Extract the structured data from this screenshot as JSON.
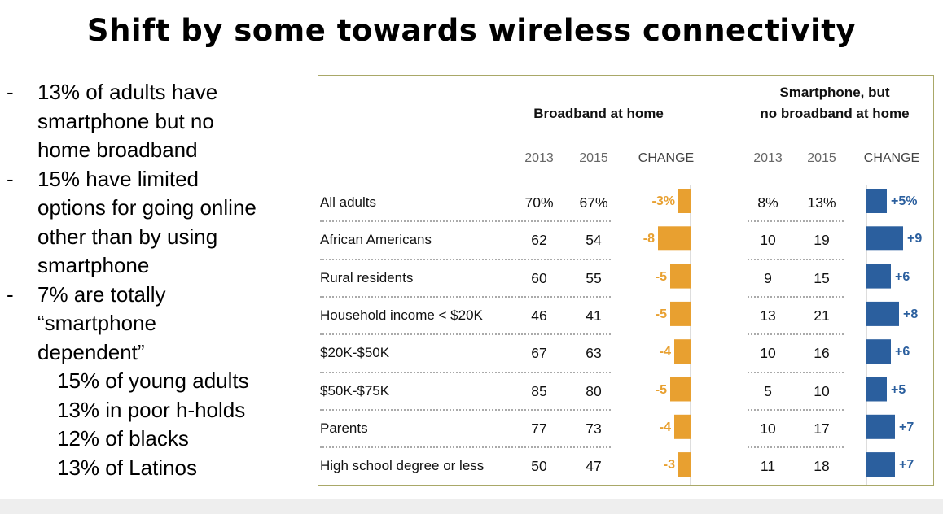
{
  "title": "Shift by some towards wireless connectivity",
  "bullets": [
    {
      "text": "13% of adults have smartphone but no home broadband",
      "lines": [
        "13% of adults have",
        "smartphone but no",
        "home broadband"
      ]
    },
    {
      "text": "15% have limited options for going online other than by using smartphone",
      "lines": [
        "15% have limited",
        "options for going online",
        "other than by using",
        "smartphone"
      ]
    },
    {
      "text": "7% are totally “smartphone dependent”",
      "lines": [
        "7% are totally",
        "“smartphone",
        "dependent”"
      ]
    }
  ],
  "sub_bullets": [
    "15% of young adults",
    "13% in poor h-holds",
    "12% of blacks",
    "13% of Latinos"
  ],
  "bullet_dash": "-",
  "colors": {
    "broadband": "#e8a030",
    "smartphone": "#2b5f9e",
    "panel_border": "#a9a868"
  },
  "chart_data": {
    "type": "table",
    "groups": [
      {
        "header": "Broadband at home",
        "header_lines": [
          "Broadband at home"
        ]
      },
      {
        "header": "Smartphone, but no broadband at home",
        "header_lines": [
          "Smartphone, but",
          "no broadband at home"
        ]
      }
    ],
    "column_headers": [
      "2013",
      "2015",
      "CHANGE"
    ],
    "rows": [
      {
        "label": "All adults",
        "broadband": {
          "y2013": "70%",
          "y2015": "67%",
          "change": -3,
          "change_label": "-3%"
        },
        "smartphone": {
          "y2013": "8%",
          "y2015": "13%",
          "change": 5,
          "change_label": "+5%"
        }
      },
      {
        "label": "African Americans",
        "broadband": {
          "y2013": "62",
          "y2015": "54",
          "change": -8,
          "change_label": "-8"
        },
        "smartphone": {
          "y2013": "10",
          "y2015": "19",
          "change": 9,
          "change_label": "+9"
        }
      },
      {
        "label": "Rural residents",
        "broadband": {
          "y2013": "60",
          "y2015": "55",
          "change": -5,
          "change_label": "-5"
        },
        "smartphone": {
          "y2013": "9",
          "y2015": "15",
          "change": 6,
          "change_label": "+6"
        }
      },
      {
        "label": "Household income < $20K",
        "broadband": {
          "y2013": "46",
          "y2015": "41",
          "change": -5,
          "change_label": "-5"
        },
        "smartphone": {
          "y2013": "13",
          "y2015": "21",
          "change": 8,
          "change_label": "+8"
        }
      },
      {
        "label": "$20K-$50K",
        "broadband": {
          "y2013": "67",
          "y2015": "63",
          "change": -4,
          "change_label": "-4"
        },
        "smartphone": {
          "y2013": "10",
          "y2015": "16",
          "change": 6,
          "change_label": "+6"
        }
      },
      {
        "label": "$50K-$75K",
        "broadband": {
          "y2013": "85",
          "y2015": "80",
          "change": -5,
          "change_label": "-5"
        },
        "smartphone": {
          "y2013": "5",
          "y2015": "10",
          "change": 5,
          "change_label": "+5"
        }
      },
      {
        "label": "Parents",
        "broadband": {
          "y2013": "77",
          "y2015": "73",
          "change": -4,
          "change_label": "-4"
        },
        "smartphone": {
          "y2013": "10",
          "y2015": "17",
          "change": 7,
          "change_label": "+7"
        }
      },
      {
        "label": "High school degree or less",
        "broadband": {
          "y2013": "50",
          "y2015": "47",
          "change": -3,
          "change_label": "-3"
        },
        "smartphone": {
          "y2013": "11",
          "y2015": "18",
          "change": 7,
          "change_label": "+7"
        }
      }
    ]
  }
}
